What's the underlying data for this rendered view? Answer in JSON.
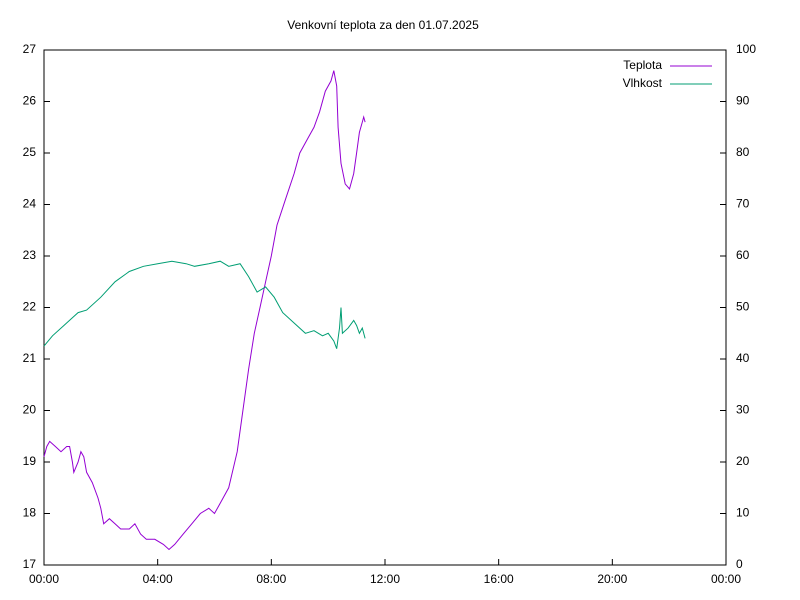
{
  "chart_data": {
    "type": "line",
    "title": "Venkovní teplota za den 01.07.2025",
    "xlim": [
      0,
      24
    ],
    "xticks": [
      {
        "value": 0,
        "label": "00:00"
      },
      {
        "value": 4,
        "label": "04:00"
      },
      {
        "value": 8,
        "label": "08:00"
      },
      {
        "value": 12,
        "label": "12:00"
      },
      {
        "value": 16,
        "label": "16:00"
      },
      {
        "value": 20,
        "label": "20:00"
      },
      {
        "value": 24,
        "label": "00:00"
      }
    ],
    "ylim": [
      17,
      27
    ],
    "yticks": [
      17,
      18,
      19,
      20,
      21,
      22,
      23,
      24,
      25,
      26,
      27
    ],
    "y2lim": [
      0,
      100
    ],
    "y2ticks": [
      0,
      10,
      20,
      30,
      40,
      50,
      60,
      70,
      80,
      90,
      100
    ],
    "legend": "top-right",
    "series": [
      {
        "name": "Teplota",
        "color": "#9400d3",
        "x": [
          0,
          0.1,
          0.2,
          0.4,
          0.6,
          0.8,
          0.9,
          1.0,
          1.05,
          1.2,
          1.3,
          1.4,
          1.5,
          1.7,
          1.9,
          2.0,
          2.1,
          2.3,
          2.5,
          2.7,
          3.0,
          3.2,
          3.4,
          3.6,
          3.9,
          4.2,
          4.4,
          4.6,
          4.9,
          5.2,
          5.5,
          5.8,
          6.0,
          6.2,
          6.5,
          6.8,
          7.0,
          7.2,
          7.4,
          7.6,
          7.8,
          8.0,
          8.2,
          8.5,
          8.8,
          9.0,
          9.3,
          9.5,
          9.7,
          9.9,
          10.1,
          10.2,
          10.3,
          10.35,
          10.45,
          10.6,
          10.75,
          10.9,
          11.0,
          11.1,
          11.2,
          11.25,
          11.3
        ],
        "values": [
          19.1,
          19.3,
          19.4,
          19.3,
          19.2,
          19.3,
          19.3,
          19.0,
          18.8,
          19.0,
          19.2,
          19.1,
          18.8,
          18.6,
          18.3,
          18.1,
          17.8,
          17.9,
          17.8,
          17.7,
          17.7,
          17.8,
          17.6,
          17.5,
          17.5,
          17.4,
          17.3,
          17.4,
          17.6,
          17.8,
          18.0,
          18.1,
          18.0,
          18.2,
          18.5,
          19.2,
          20.0,
          20.8,
          21.5,
          22.0,
          22.5,
          23.0,
          23.6,
          24.1,
          24.6,
          25.0,
          25.3,
          25.5,
          25.8,
          26.2,
          26.4,
          26.6,
          26.3,
          25.5,
          24.8,
          24.4,
          24.3,
          24.6,
          25.0,
          25.4,
          25.6,
          25.7,
          25.6
        ]
      },
      {
        "name": "Vlhkost",
        "color": "#009e73",
        "axis": "y2",
        "x": [
          0,
          0.3,
          0.7,
          1.0,
          1.2,
          1.5,
          2.0,
          2.5,
          3.0,
          3.5,
          4.0,
          4.5,
          5.0,
          5.3,
          5.8,
          6.2,
          6.5,
          6.9,
          7.2,
          7.5,
          7.8,
          8.1,
          8.4,
          8.8,
          9.2,
          9.5,
          9.8,
          10.0,
          10.2,
          10.3,
          10.4,
          10.45,
          10.5,
          10.7,
          10.9,
          11.0,
          11.1,
          11.2,
          11.3
        ],
        "values": [
          42.5,
          44.5,
          46.5,
          48,
          49,
          49.5,
          52,
          55,
          57,
          58,
          58.5,
          59,
          58.5,
          58,
          58.5,
          59,
          58,
          58.5,
          56,
          53,
          54,
          52,
          49,
          47,
          45,
          45.5,
          44.5,
          45,
          43.5,
          42,
          46,
          50,
          45,
          46,
          47.5,
          46.5,
          45,
          46,
          44
        ]
      }
    ]
  }
}
